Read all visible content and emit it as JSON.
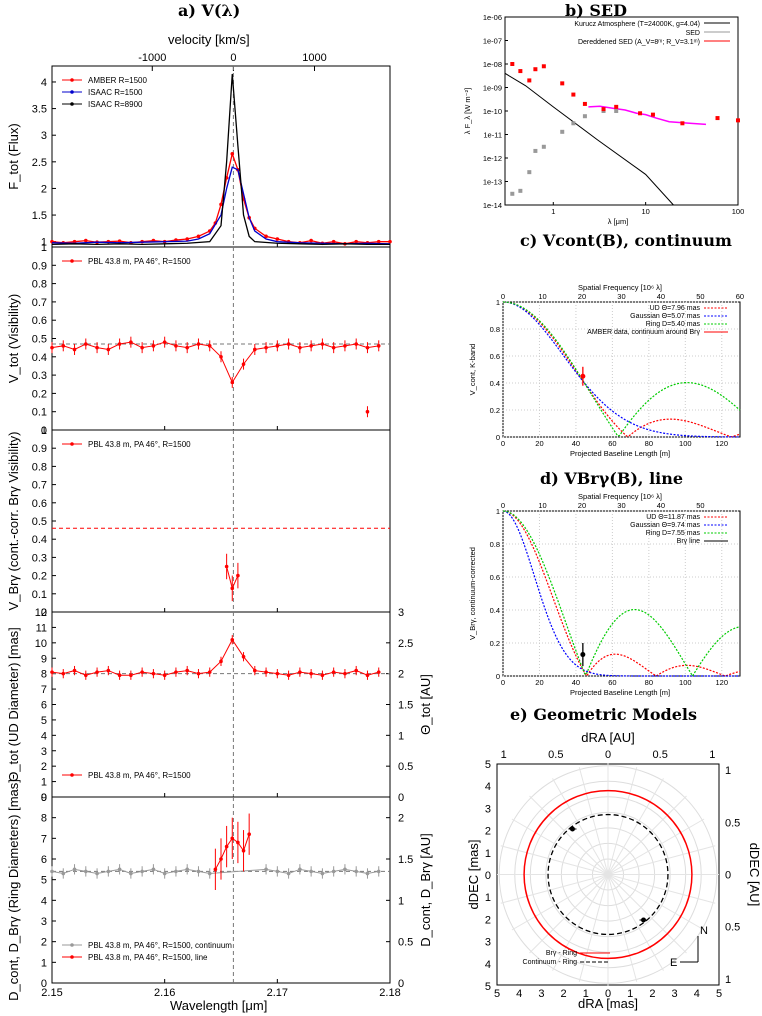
{
  "titles": {
    "a": "a) V(λ)",
    "b": "b) SED",
    "c": "c) Vcont(B), continuum",
    "d": "d) VBrγ(B), line",
    "e": "e) Geometric Models"
  },
  "colors": {
    "amber": "#ff0000",
    "isaac1500": "#0000cc",
    "isaac8900": "#000000",
    "grey": "#999999",
    "ud": "#ff0000",
    "gaussian": "#0000ff",
    "ring": "#00cc00",
    "magenta": "#ff00ff"
  },
  "chart_data": [
    {
      "id": "a1-flux",
      "type": "line",
      "xlabel": "Wavelength [μm]",
      "ylabel": "F_tot (Flux)",
      "top_xlabel": "velocity [km/s]",
      "top_ticks": [
        "-1000",
        "0",
        "1000"
      ],
      "x_ticks": [
        "2.15",
        "2.16",
        "2.17",
        "2.18"
      ],
      "xlim": [
        2.15,
        2.18
      ],
      "ylim": [
        0.9,
        4.3
      ],
      "y_ticks": [
        "1",
        "1.5",
        "2",
        "2.5",
        "3",
        "3.5",
        "4"
      ],
      "legend": [
        "AMBER R=1500",
        "ISAAC R=1500",
        "ISAAC R=8900"
      ],
      "series": [
        {
          "name": "AMBER R=1500",
          "color": "#ff0000",
          "x": [
            2.15,
            2.151,
            2.152,
            2.153,
            2.154,
            2.155,
            2.156,
            2.157,
            2.158,
            2.159,
            2.16,
            2.161,
            2.162,
            2.163,
            2.164,
            2.1645,
            2.165,
            2.1655,
            2.166,
            2.1665,
            2.167,
            2.1675,
            2.168,
            2.169,
            2.17,
            2.171,
            2.172,
            2.173,
            2.174,
            2.175,
            2.176,
            2.177,
            2.178,
            2.179,
            2.18
          ],
          "y": [
            1.0,
            0.98,
            1.0,
            1.02,
            0.99,
            1.0,
            1.01,
            0.98,
            1.0,
            1.02,
            1.0,
            1.03,
            1.05,
            1.1,
            1.2,
            1.35,
            1.7,
            2.2,
            2.65,
            2.35,
            1.8,
            1.45,
            1.25,
            1.1,
            1.05,
            1.0,
            0.98,
            1.02,
            0.97,
            1.0,
            0.96,
            1.0,
            0.98,
            1.0,
            1.0
          ]
        },
        {
          "name": "ISAAC R=1500",
          "color": "#0000cc",
          "x": [
            2.15,
            2.152,
            2.154,
            2.156,
            2.158,
            2.16,
            2.162,
            2.163,
            2.164,
            2.165,
            2.1655,
            2.166,
            2.1665,
            2.167,
            2.1675,
            2.168,
            2.169,
            2.17,
            2.172,
            2.174,
            2.176,
            2.178,
            2.18
          ],
          "y": [
            0.98,
            0.97,
            0.99,
            0.98,
            0.99,
            1.0,
            1.01,
            1.05,
            1.15,
            1.5,
            2.0,
            2.4,
            2.35,
            1.9,
            1.45,
            1.2,
            1.05,
            1.0,
            0.98,
            0.97,
            0.96,
            0.97,
            0.96
          ]
        },
        {
          "name": "ISAAC R=8900",
          "color": "#000000",
          "x": [
            2.15,
            2.152,
            2.154,
            2.156,
            2.158,
            2.16,
            2.162,
            2.164,
            2.165,
            2.1655,
            2.166,
            2.1665,
            2.167,
            2.1675,
            2.168,
            2.17,
            2.172,
            2.174,
            2.176,
            2.178,
            2.18
          ],
          "y": [
            0.95,
            0.96,
            0.95,
            0.96,
            0.95,
            0.96,
            0.97,
            1.0,
            1.3,
            2.5,
            4.15,
            2.8,
            1.5,
            1.1,
            1.0,
            0.97,
            0.96,
            0.95,
            0.96,
            0.95,
            0.95
          ]
        }
      ]
    },
    {
      "id": "a2-vis",
      "type": "line",
      "ylabel": "V_tot (Visibility)",
      "ylim": [
        0,
        1
      ],
      "y_ticks": [
        "0",
        "0.1",
        "0.2",
        "0.3",
        "0.4",
        "0.5",
        "0.6",
        "0.7",
        "0.8",
        "0.9",
        "1"
      ],
      "legend": [
        "PBL 43.8 m, PA 46°, R=1500"
      ],
      "ref_line": 0.47,
      "series": [
        {
          "name": "PBL 43.8 m, PA 46°, R=1500",
          "color": "#ff0000",
          "x": [
            2.15,
            2.151,
            2.152,
            2.153,
            2.154,
            2.155,
            2.156,
            2.157,
            2.158,
            2.159,
            2.16,
            2.161,
            2.162,
            2.163,
            2.164,
            2.165,
            2.166,
            2.167,
            2.168,
            2.169,
            2.17,
            2.171,
            2.172,
            2.173,
            2.174,
            2.175,
            2.176,
            2.177,
            2.178,
            2.179
          ],
          "y": [
            0.45,
            0.46,
            0.44,
            0.47,
            0.45,
            0.44,
            0.47,
            0.48,
            0.45,
            0.46,
            0.48,
            0.46,
            0.45,
            0.47,
            0.46,
            0.4,
            0.26,
            0.36,
            0.44,
            0.45,
            0.46,
            0.47,
            0.45,
            0.46,
            0.47,
            0.45,
            0.46,
            0.47,
            0.45,
            0.46
          ],
          "err": 0.03
        },
        {
          "name": "outlier",
          "color": "#ff0000",
          "x": [
            2.178
          ],
          "y": [
            0.1
          ],
          "err": 0.03
        }
      ]
    },
    {
      "id": "a3-brg",
      "type": "line",
      "ylabel": "V_Brγ (cont.-corr. Brγ Visibility)",
      "ylim": [
        0,
        1
      ],
      "y_ticks": [
        "0",
        "0.1",
        "0.2",
        "0.3",
        "0.4",
        "0.5",
        "0.6",
        "0.7",
        "0.8",
        "0.9",
        "1"
      ],
      "legend": [
        "PBL 43.8 m, PA 46°, R=1500"
      ],
      "ref_line": 0.46,
      "series": [
        {
          "name": "PBL 43.8 m, PA 46°, R=1500",
          "color": "#ff0000",
          "x": [
            2.1655,
            2.166,
            2.1665
          ],
          "y": [
            0.25,
            0.13,
            0.2
          ],
          "err": 0.07
        }
      ]
    },
    {
      "id": "a4-ud",
      "type": "line",
      "ylabel": "Θ_tot (UD Diameter) [mas]",
      "y2label": "Θ_tot [AU]",
      "ylim": [
        0,
        12
      ],
      "y_ticks": [
        "0",
        "1",
        "2",
        "3",
        "4",
        "5",
        "6",
        "7",
        "8",
        "9",
        "10",
        "11",
        "12"
      ],
      "y2_ticks": [
        "0",
        "0.5",
        "1",
        "1.5",
        "2",
        "2.5",
        "3"
      ],
      "legend": [
        "PBL 43.8 m, PA 46°, R=1500"
      ],
      "ref_line": 8.0,
      "series": [
        {
          "name": "PBL 43.8 m, PA 46°, R=1500",
          "color": "#ff0000",
          "x": [
            2.15,
            2.151,
            2.152,
            2.153,
            2.154,
            2.155,
            2.156,
            2.157,
            2.158,
            2.159,
            2.16,
            2.161,
            2.162,
            2.163,
            2.164,
            2.165,
            2.166,
            2.167,
            2.168,
            2.169,
            2.17,
            2.171,
            2.172,
            2.173,
            2.174,
            2.175,
            2.176,
            2.177,
            2.178,
            2.179
          ],
          "y": [
            8.1,
            8.0,
            8.2,
            7.9,
            8.1,
            8.2,
            7.9,
            7.9,
            8.1,
            8.0,
            7.9,
            8.1,
            8.2,
            8.0,
            8.1,
            8.8,
            10.2,
            9.1,
            8.2,
            8.1,
            8.0,
            7.9,
            8.1,
            8.0,
            7.9,
            8.1,
            8.0,
            8.2,
            7.9,
            8.1
          ],
          "err": 0.3
        }
      ]
    },
    {
      "id": "a5-ring",
      "type": "line",
      "xlabel": "Wavelength [μm]",
      "ylabel": "D_cont, D_Brγ (Ring Diameters) [mas]",
      "y2label": "D_cont, D_Brγ [AU]",
      "ylim": [
        0,
        9
      ],
      "y_ticks": [
        "0",
        "1",
        "2",
        "3",
        "4",
        "5",
        "6",
        "7",
        "8",
        "9"
      ],
      "y2_ticks": [
        "0",
        "0.5",
        "1",
        "1.5",
        "2"
      ],
      "ref_line": 5.4,
      "legend": [
        "PBL 43.8 m, PA 46°, R=1500, continuum",
        "PBL 43.8 m, PA 46°, R=1500, line"
      ],
      "series": [
        {
          "name": "PBL 43.8 m, PA 46°, R=1500, continuum",
          "color": "#999999",
          "x": [
            2.15,
            2.151,
            2.152,
            2.153,
            2.154,
            2.155,
            2.156,
            2.157,
            2.158,
            2.159,
            2.16,
            2.161,
            2.162,
            2.163,
            2.164,
            2.169,
            2.17,
            2.171,
            2.172,
            2.173,
            2.174,
            2.175,
            2.176,
            2.177,
            2.178,
            2.179
          ],
          "y": [
            5.4,
            5.3,
            5.5,
            5.4,
            5.3,
            5.4,
            5.5,
            5.3,
            5.4,
            5.5,
            5.3,
            5.4,
            5.5,
            5.4,
            5.3,
            5.5,
            5.4,
            5.3,
            5.5,
            5.4,
            5.3,
            5.4,
            5.5,
            5.4,
            5.3,
            5.4
          ],
          "err": 0.25
        },
        {
          "name": "PBL 43.8 m, PA 46°, R=1500, line",
          "color": "#ff0000",
          "x": [
            2.1645,
            2.165,
            2.1655,
            2.166,
            2.1665,
            2.167,
            2.1675
          ],
          "y": [
            5.5,
            6.0,
            6.6,
            7.0,
            6.8,
            6.4,
            7.2
          ],
          "err": 1.0
        }
      ]
    },
    {
      "id": "b-sed",
      "type": "scatter",
      "title": "b) SED",
      "xlabel": "λ [μm]",
      "ylabel": "λ F_λ [W m⁻²]",
      "x_scale": "log",
      "y_scale": "log",
      "xlim": [
        0.3,
        100
      ],
      "ylim": [
        1e-14,
        1e-06
      ],
      "x_ticks": [
        "1",
        "10",
        "100"
      ],
      "y_ticks": [
        "1e-14",
        "1e-13",
        "1e-12",
        "1e-11",
        "1e-10",
        "1e-09",
        "1e-08",
        "1e-07",
        "1e-06"
      ],
      "legend": [
        "Kurucz Atmosphere (T=24000K, g=4.04)",
        "SED",
        "Dereddened SED (A_V=8ᵐ; R_V=3.1ᵐ)"
      ],
      "series": [
        {
          "name": "SED",
          "color": "#999999",
          "x": [
            0.36,
            0.44,
            0.55,
            0.64,
            0.79,
            1.25,
            1.65,
            2.2,
            3.5,
            4.8
          ],
          "y": [
            3e-14,
            4e-14,
            2.5e-13,
            2e-12,
            3e-12,
            1.3e-11,
            3e-11,
            6e-11,
            1e-10,
            1e-10
          ]
        },
        {
          "name": "Dereddened SED (A_V=8ᵐ; R_V=3.1ᵐ)",
          "color": "#ff0000",
          "x": [
            0.36,
            0.44,
            0.55,
            0.64,
            0.79,
            1.25,
            1.65,
            2.2,
            3.5,
            4.8,
            8.7,
            12,
            25,
            60,
            100
          ],
          "y": [
            1e-08,
            5e-09,
            2e-09,
            6e-09,
            8e-09,
            1.5e-09,
            5e-10,
            2e-10,
            1.2e-10,
            1.5e-10,
            8e-11,
            7e-11,
            3e-11,
            5e-11,
            4e-11
          ]
        }
      ]
    },
    {
      "id": "c-vcont",
      "type": "line",
      "title": "c) Vcont(B), continuum",
      "xlabel": "Projected Baseline Length [m]",
      "ylabel": "V_cont, K-band",
      "top_xlabel": "Spatial Frequency [10⁶ λ]",
      "xlim": [
        0,
        130
      ],
      "ylim": [
        0,
        1
      ],
      "x_ticks": [
        "0",
        "20",
        "40",
        "60",
        "80",
        "100",
        "120"
      ],
      "top_ticks": [
        "0",
        "10",
        "20",
        "30",
        "40",
        "50",
        "60"
      ],
      "y_ticks": [
        "0",
        "0.2",
        "0.4",
        "0.6",
        "0.8",
        "1"
      ],
      "legend": [
        "UD Θ=7.96 mas",
        "Gaussian Θ=5.07 mas",
        "Ring D=5.40 mas",
        "AMBER data, continuum around Brγ"
      ],
      "data_point": {
        "x": 43.8,
        "y": 0.45,
        "err": 0.07
      }
    },
    {
      "id": "d-vbrg",
      "type": "line",
      "title": "d) VBrγ(B), line",
      "xlabel": "Projected Baseline Length [m]",
      "ylabel": "V_Brγ, continuum-corrected",
      "top_xlabel": "Spatial Frequency [10⁶ λ]",
      "xlim": [
        0,
        130
      ],
      "ylim": [
        0,
        1
      ],
      "x_ticks": [
        "0",
        "20",
        "40",
        "60",
        "80",
        "100",
        "120"
      ],
      "top_ticks": [
        "0",
        "10",
        "20",
        "30",
        "40",
        "50"
      ],
      "y_ticks": [
        "0",
        "0.2",
        "0.4",
        "0.6",
        "0.8",
        "1"
      ],
      "legend": [
        "UD Θ=11.87 mas",
        "Gaussian Θ=9.74 mas",
        "Ring D=7.55 mas",
        "Brγ line"
      ],
      "data_point": {
        "x": 43.8,
        "y": 0.13,
        "err": 0.07
      }
    },
    {
      "id": "e-geom",
      "type": "scatter",
      "title": "e) Geometric Models",
      "xlabel": "dRA [mas]",
      "ylabel": "dDEC [mas]",
      "top_xlabel": "dRA [AU]",
      "y2label": "dDEC [AU]",
      "x_ticks": [
        "5",
        "4",
        "3",
        "2",
        "1",
        "0",
        "1",
        "2",
        "3",
        "4",
        "5"
      ],
      "y_ticks": [
        "5",
        "4",
        "3",
        "2",
        "1",
        "0",
        "1",
        "2",
        "3",
        "4",
        "5"
      ],
      "top_ticks": [
        "1",
        "0.5",
        "0",
        "0.5",
        "1"
      ],
      "y2_ticks": [
        "1",
        "0.5",
        "0",
        "0.5",
        "1"
      ],
      "legend": [
        "Brγ - Ring",
        "Continuum - Ring"
      ],
      "brg_ring_radius_mas": 3.78,
      "cont_ring_radius_mas": 2.7,
      "points": [
        {
          "x": 1.6,
          "y": 2.05
        },
        {
          "x": -1.6,
          "y": -2.05
        }
      ],
      "compass": {
        "N": "N",
        "E": "E"
      }
    }
  ]
}
